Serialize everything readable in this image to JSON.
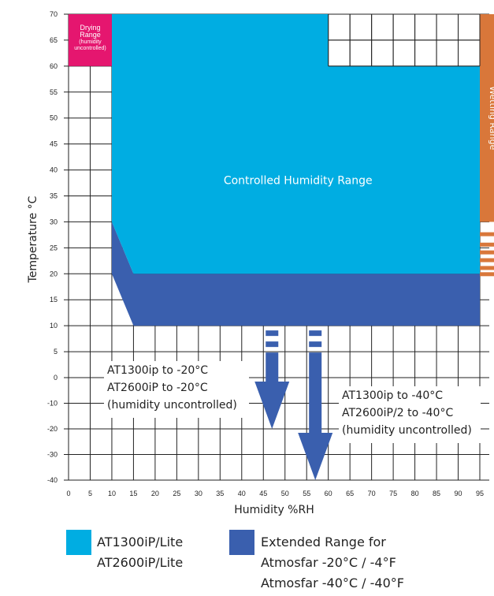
{
  "chart_data": {
    "type": "area",
    "xlabel": "Humidity %RH",
    "ylabel": "Temperature °C",
    "xlim": [
      0,
      95
    ],
    "ylim": [
      -40,
      70
    ],
    "x_ticks": [
      0,
      5,
      10,
      15,
      20,
      25,
      30,
      35,
      40,
      45,
      50,
      55,
      60,
      65,
      70,
      75,
      80,
      85,
      90,
      95
    ],
    "y_ticks": [
      -40,
      -30,
      -20,
      -10,
      0,
      5,
      10,
      15,
      20,
      25,
      30,
      35,
      40,
      45,
      50,
      55,
      60,
      65,
      70
    ],
    "grid": true,
    "colors": {
      "controlled": "#00ade2",
      "extended": "#3a5fae",
      "drying": "#e5166f",
      "wetting": "#d9773a"
    },
    "regions": {
      "controlled": {
        "label": "Controlled Humidity Range",
        "polygon": [
          [
            10,
            70
          ],
          [
            60,
            70
          ],
          [
            60,
            60
          ],
          [
            95,
            60
          ],
          [
            95,
            20
          ],
          [
            15,
            20
          ],
          [
            10,
            30
          ]
        ]
      },
      "extended": {
        "polygon": [
          [
            10,
            30
          ],
          [
            15,
            20
          ],
          [
            95,
            20
          ],
          [
            95,
            10
          ],
          [
            15,
            10
          ],
          [
            10,
            20
          ]
        ]
      },
      "drying": {
        "label_lines": [
          "Drying",
          "Range",
          "(humidity",
          "uncontrolled)"
        ],
        "x": [
          0,
          10
        ],
        "y": [
          60,
          70
        ]
      },
      "wetting": {
        "label": "Wetting Range",
        "x": [
          95,
          100
        ],
        "y": [
          20,
          70
        ]
      }
    },
    "arrows": [
      {
        "x": 47,
        "from_y": 10,
        "to_y": -20,
        "label_lines": [
          "AT1300ip to -20°C",
          "AT2600iP to -20°C",
          "(humidity uncontrolled)"
        ]
      },
      {
        "x": 57,
        "from_y": 10,
        "to_y": -40,
        "label_lines": [
          "AT1300ip to -40°C",
          "AT2600iP/2 to -40°C",
          "(humidity uncontrolled)"
        ]
      }
    ],
    "legend": [
      {
        "color_key": "controlled",
        "lines": [
          "AT1300iP/Lite",
          "AT2600iP/Lite"
        ]
      },
      {
        "color_key": "extended",
        "lines": [
          "Extended Range for",
          "Atmosfar -20°C / -4°F",
          "Atmosfar -40°C / -40°F"
        ]
      }
    ]
  }
}
